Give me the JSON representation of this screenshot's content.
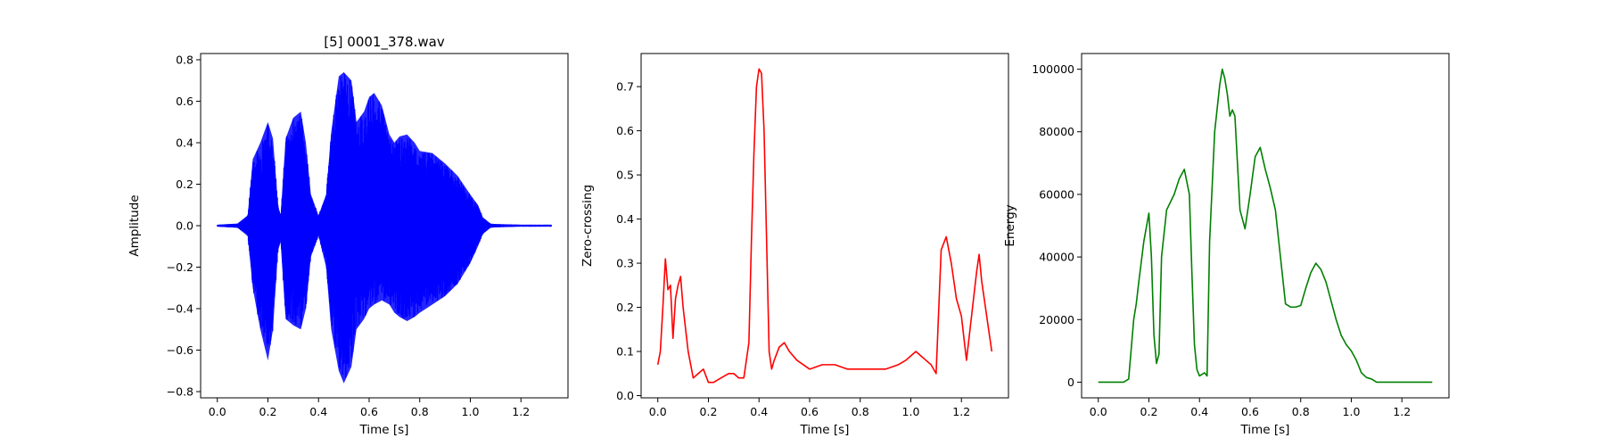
{
  "chart_data": [
    {
      "type": "line",
      "title": "[5] 0001_378.wav",
      "xlabel": "Time [s]",
      "ylabel": "Amplitude",
      "xlim": [
        -0.066,
        1.386
      ],
      "ylim": [
        -0.83,
        0.83
      ],
      "xticks": [
        0.0,
        0.2,
        0.4,
        0.6,
        0.8,
        1.0,
        1.2
      ],
      "xtick_labels": [
        "0.0",
        "0.2",
        "0.4",
        "0.6",
        "0.8",
        "1.0",
        "1.2"
      ],
      "yticks": [
        -0.8,
        -0.6,
        -0.4,
        -0.2,
        0.0,
        0.2,
        0.4,
        0.6,
        0.8
      ],
      "ytick_labels": [
        "−0.8",
        "−0.6",
        "−0.4",
        "−0.2",
        "0.0",
        "0.2",
        "0.4",
        "0.6",
        "0.8"
      ],
      "grid": false,
      "color": "#0000ff",
      "series": [
        {
          "x": [
            0.0,
            0.08,
            0.12,
            0.14,
            0.17,
            0.2,
            0.22,
            0.24,
            0.25,
            0.27,
            0.3,
            0.33,
            0.35,
            0.37,
            0.4,
            0.43,
            0.45,
            0.48,
            0.5,
            0.53,
            0.55,
            0.58,
            0.6,
            0.62,
            0.65,
            0.68,
            0.7,
            0.72,
            0.75,
            0.78,
            0.8,
            0.85,
            0.9,
            0.95,
            1.0,
            1.03,
            1.05,
            1.08,
            1.1,
            1.2,
            1.32
          ],
          "upper": [
            0.005,
            0.01,
            0.05,
            0.32,
            0.4,
            0.5,
            0.42,
            0.1,
            0.05,
            0.42,
            0.52,
            0.55,
            0.4,
            0.15,
            0.05,
            0.15,
            0.45,
            0.72,
            0.74,
            0.7,
            0.5,
            0.55,
            0.62,
            0.64,
            0.58,
            0.44,
            0.4,
            0.43,
            0.44,
            0.4,
            0.36,
            0.35,
            0.3,
            0.24,
            0.15,
            0.1,
            0.04,
            0.01,
            0.008,
            0.005,
            0.005
          ],
          "lower": [
            -0.005,
            -0.01,
            -0.05,
            -0.3,
            -0.5,
            -0.65,
            -0.5,
            -0.12,
            -0.08,
            -0.45,
            -0.48,
            -0.5,
            -0.4,
            -0.15,
            -0.05,
            -0.2,
            -0.5,
            -0.7,
            -0.76,
            -0.68,
            -0.5,
            -0.45,
            -0.4,
            -0.38,
            -0.36,
            -0.38,
            -0.42,
            -0.44,
            -0.46,
            -0.44,
            -0.42,
            -0.38,
            -0.34,
            -0.28,
            -0.18,
            -0.1,
            -0.04,
            -0.01,
            -0.008,
            -0.005,
            -0.005
          ]
        }
      ]
    },
    {
      "type": "line",
      "xlabel": "Time [s]",
      "ylabel": "Zero-crossing",
      "xlim": [
        -0.066,
        1.386
      ],
      "ylim": [
        -0.005,
        0.775
      ],
      "xticks": [
        0.0,
        0.2,
        0.4,
        0.6,
        0.8,
        1.0,
        1.2
      ],
      "xtick_labels": [
        "0.0",
        "0.2",
        "0.4",
        "0.6",
        "0.8",
        "1.0",
        "1.2"
      ],
      "yticks": [
        0.0,
        0.1,
        0.2,
        0.3,
        0.4,
        0.5,
        0.6,
        0.7
      ],
      "ytick_labels": [
        "0.0",
        "0.1",
        "0.2",
        "0.3",
        "0.4",
        "0.5",
        "0.6",
        "0.7"
      ],
      "grid": false,
      "color": "#ff0000",
      "series": [
        {
          "x": [
            0.0,
            0.01,
            0.02,
            0.03,
            0.04,
            0.05,
            0.06,
            0.07,
            0.08,
            0.09,
            0.1,
            0.12,
            0.14,
            0.16,
            0.18,
            0.2,
            0.22,
            0.25,
            0.28,
            0.3,
            0.32,
            0.34,
            0.36,
            0.37,
            0.38,
            0.39,
            0.4,
            0.41,
            0.42,
            0.43,
            0.44,
            0.45,
            0.46,
            0.48,
            0.5,
            0.52,
            0.55,
            0.6,
            0.65,
            0.7,
            0.75,
            0.8,
            0.85,
            0.9,
            0.95,
            0.98,
            1.0,
            1.02,
            1.04,
            1.06,
            1.08,
            1.1,
            1.12,
            1.14,
            1.16,
            1.18,
            1.2,
            1.22,
            1.24,
            1.26,
            1.27,
            1.28,
            1.3,
            1.32
          ],
          "y": [
            0.07,
            0.1,
            0.2,
            0.31,
            0.24,
            0.25,
            0.13,
            0.22,
            0.25,
            0.27,
            0.2,
            0.1,
            0.04,
            0.05,
            0.06,
            0.03,
            0.03,
            0.04,
            0.05,
            0.05,
            0.04,
            0.04,
            0.12,
            0.35,
            0.55,
            0.7,
            0.74,
            0.73,
            0.6,
            0.35,
            0.1,
            0.06,
            0.08,
            0.11,
            0.12,
            0.1,
            0.08,
            0.06,
            0.07,
            0.07,
            0.06,
            0.06,
            0.06,
            0.06,
            0.07,
            0.08,
            0.09,
            0.1,
            0.09,
            0.08,
            0.07,
            0.05,
            0.33,
            0.36,
            0.3,
            0.22,
            0.18,
            0.08,
            0.18,
            0.28,
            0.32,
            0.26,
            0.18,
            0.1
          ]
        }
      ]
    },
    {
      "type": "line",
      "xlabel": "Time [s]",
      "ylabel": "Energy",
      "xlim": [
        -0.066,
        1.386
      ],
      "ylim": [
        -5000,
        105000
      ],
      "xticks": [
        0.0,
        0.2,
        0.4,
        0.6,
        0.8,
        1.0,
        1.2
      ],
      "xtick_labels": [
        "0.0",
        "0.2",
        "0.4",
        "0.6",
        "0.8",
        "1.0",
        "1.2"
      ],
      "yticks": [
        0,
        20000,
        40000,
        60000,
        80000,
        100000
      ],
      "ytick_labels": [
        "0",
        "20000",
        "40000",
        "60000",
        "80000",
        "100000"
      ],
      "grid": false,
      "color": "#008000",
      "series": [
        {
          "x": [
            0.0,
            0.1,
            0.12,
            0.14,
            0.15,
            0.16,
            0.18,
            0.2,
            0.21,
            0.22,
            0.23,
            0.24,
            0.25,
            0.27,
            0.3,
            0.32,
            0.34,
            0.36,
            0.37,
            0.38,
            0.39,
            0.4,
            0.42,
            0.43,
            0.44,
            0.46,
            0.48,
            0.49,
            0.5,
            0.51,
            0.52,
            0.53,
            0.54,
            0.56,
            0.58,
            0.6,
            0.62,
            0.64,
            0.66,
            0.68,
            0.7,
            0.72,
            0.74,
            0.76,
            0.78,
            0.8,
            0.82,
            0.84,
            0.86,
            0.88,
            0.9,
            0.92,
            0.94,
            0.96,
            0.98,
            1.0,
            1.02,
            1.04,
            1.06,
            1.08,
            1.1,
            1.2,
            1.32
          ],
          "y": [
            0,
            0,
            1000,
            20000,
            25000,
            32000,
            45000,
            54000,
            40000,
            15000,
            6000,
            9000,
            40000,
            55000,
            60000,
            65000,
            68000,
            60000,
            35000,
            12000,
            4000,
            2000,
            3000,
            2000,
            45000,
            80000,
            95000,
            100000,
            97000,
            92000,
            85000,
            87000,
            85000,
            55000,
            49000,
            60000,
            72000,
            75000,
            68000,
            62000,
            55000,
            40000,
            25000,
            24000,
            24000,
            24500,
            30000,
            35000,
            38000,
            36000,
            32000,
            26000,
            20000,
            15000,
            12000,
            10000,
            7000,
            3000,
            1500,
            1000,
            0,
            0,
            0
          ]
        }
      ]
    }
  ]
}
